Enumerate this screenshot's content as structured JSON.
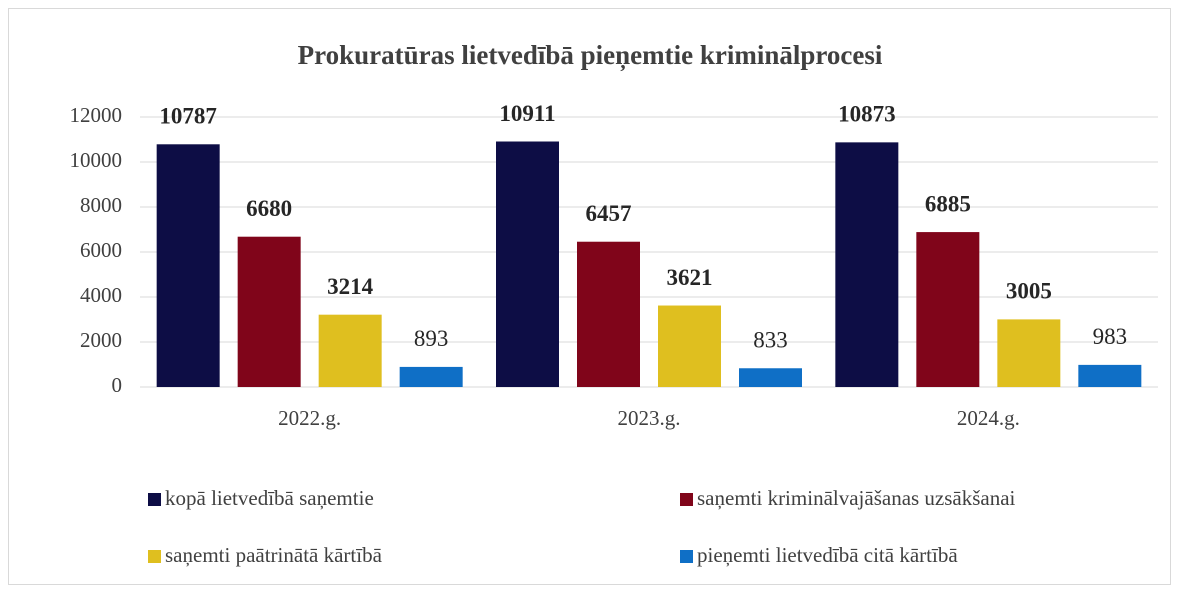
{
  "chart_data": {
    "type": "bar",
    "title": "Prokuratūras lietvedībā pieņemtie kriminālprocesi",
    "categories": [
      "2022.g.",
      "2023.g.",
      "2024.g."
    ],
    "series": [
      {
        "name": "kopā lietvedībā saņemtie",
        "color": "#0d0d45",
        "values": [
          10787,
          10911,
          10873
        ]
      },
      {
        "name": "saņemti kriminālvajāšanas uzsākšanai",
        "color": "#80051a",
        "values": [
          6680,
          6457,
          6885
        ]
      },
      {
        "name": "saņemti paātrinātā kārtībā",
        "color": "#dfbf1f",
        "values": [
          3214,
          3621,
          3005
        ]
      },
      {
        "name": "pieņemti lietvedībā citā kārtībā",
        "color": "#0f6fc6",
        "values": [
          893,
          833,
          983
        ]
      }
    ],
    "ylim": [
      0,
      12000
    ],
    "yticks": [
      0,
      2000,
      4000,
      6000,
      8000,
      10000,
      12000
    ],
    "grid": true
  }
}
